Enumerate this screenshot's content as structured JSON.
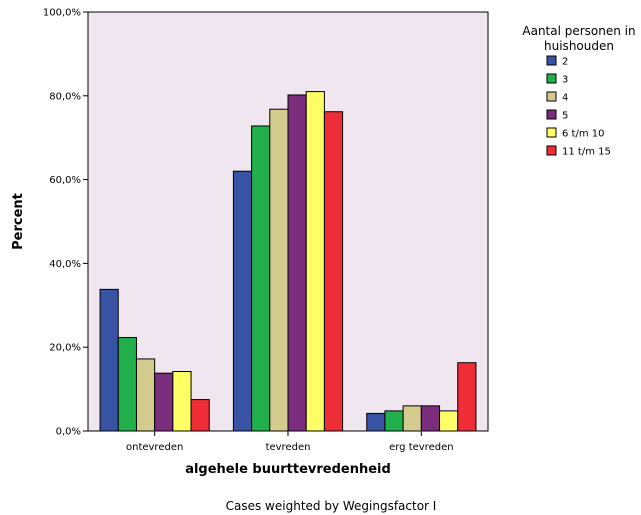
{
  "chart_data": {
    "type": "bar",
    "xlabel": "algehele buurttevredenheid",
    "ylabel": "Percent",
    "ylim": [
      0,
      100
    ],
    "yticks": [
      "0,0%",
      "20,0%",
      "40,0%",
      "60,0%",
      "80,0%",
      "100,0%"
    ],
    "categories": [
      "ontevreden",
      "tevreden",
      "erg tevreden"
    ],
    "legend": {
      "title": "Aantal personen in huishouden",
      "placement": "top-right"
    },
    "grid": false,
    "footnote": "Cases weighted by Wegingsfactor I",
    "series": [
      {
        "name": "2",
        "color": "#3953a4",
        "values": [
          33.8,
          62.0,
          4.2
        ]
      },
      {
        "name": "3",
        "color": "#21b04b",
        "values": [
          22.3,
          72.8,
          4.8
        ]
      },
      {
        "name": "4",
        "color": "#d4cc8e",
        "values": [
          17.2,
          76.8,
          6.0
        ]
      },
      {
        "name": "5",
        "color": "#7b2d7e",
        "values": [
          13.8,
          80.2,
          6.0
        ]
      },
      {
        "name": "6 t/m 10",
        "color": "#ffff66",
        "values": [
          14.2,
          81.0,
          4.8
        ]
      },
      {
        "name": "11 t/m 15",
        "color": "#ee2d36",
        "values": [
          7.5,
          76.2,
          16.3
        ]
      }
    ],
    "plot_background": "#f0e6f0"
  }
}
